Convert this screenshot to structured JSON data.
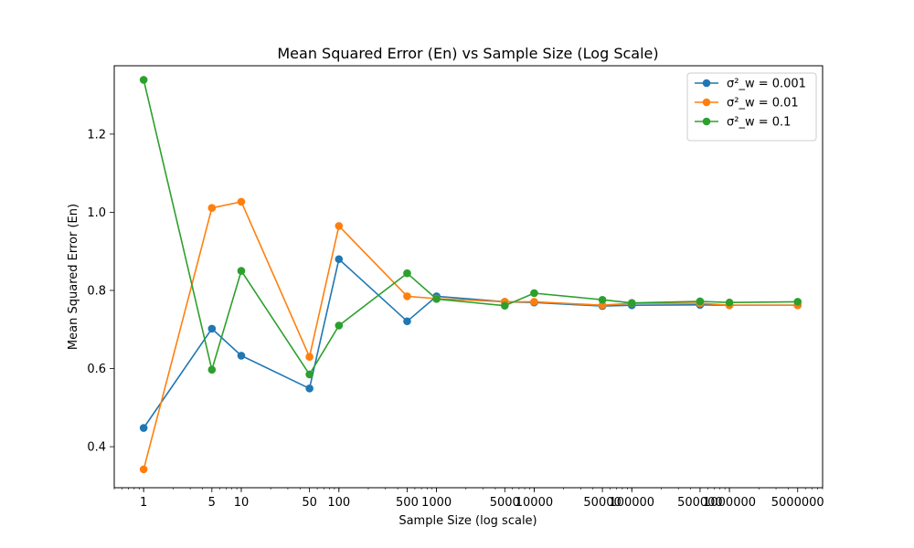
{
  "chart_data": {
    "type": "line",
    "title": "Mean Squared Error (En) vs Sample Size (Log Scale)",
    "xlabel": "Sample Size (log scale)",
    "ylabel": "Mean Squared Error (En)",
    "x_scale": "log",
    "xlim": [
      0.5,
      9000000
    ],
    "ylim": [
      0.295,
      1.375
    ],
    "grid": false,
    "legend_position": "top-right",
    "x": [
      1,
      5,
      10,
      50,
      100,
      500,
      1000,
      5000,
      10000,
      50000,
      100000,
      500000,
      1000000,
      5000000
    ],
    "x_tick_labels": [
      "1",
      "5",
      "10",
      "50",
      "100",
      "500",
      "1000",
      "5000",
      "10000",
      "50000",
      "100000",
      "500000",
      "1000000",
      "5000000"
    ],
    "y_ticks": [
      0.4,
      0.6,
      0.8,
      1.0,
      1.2
    ],
    "y_tick_labels": [
      "0.4",
      "0.6",
      "0.8",
      "1.0",
      "1.2"
    ],
    "series": [
      {
        "name": "σ²_w = 0.001",
        "color": "#1f77b4",
        "values": [
          0.448,
          0.702,
          0.633,
          0.549,
          0.88,
          0.721,
          0.785,
          0.771,
          0.769,
          0.76,
          0.762,
          0.763,
          0.762,
          0.762
        ]
      },
      {
        "name": "σ²_w = 0.01",
        "color": "#ff7f0e",
        "values": [
          0.342,
          1.011,
          1.027,
          0.63,
          0.965,
          0.785,
          0.779,
          0.771,
          0.771,
          0.762,
          0.767,
          0.767,
          0.762,
          0.762
        ]
      },
      {
        "name": "σ²_w = 0.1",
        "color": "#2ca02c",
        "values": [
          1.339,
          0.597,
          0.85,
          0.585,
          0.71,
          0.844,
          0.778,
          0.761,
          0.793,
          0.776,
          0.768,
          0.772,
          0.769,
          0.771
        ]
      }
    ]
  }
}
